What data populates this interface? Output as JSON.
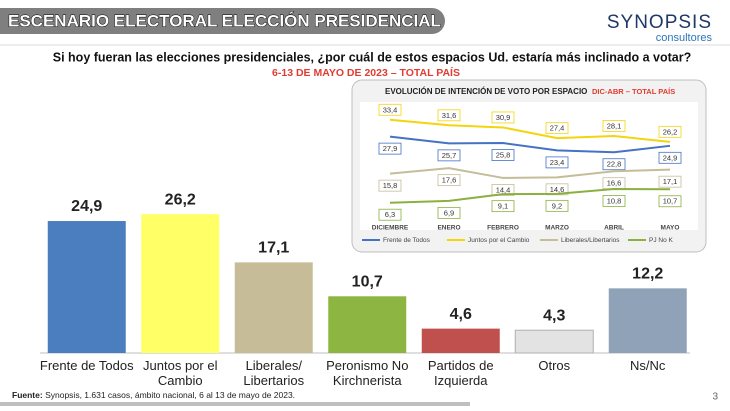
{
  "header": {
    "title": "ESCENARIO ELECTORAL ELECCIÓN PRESIDENCIAL"
  },
  "logo": {
    "name": "SYNOPSIS",
    "tagline": "consultores"
  },
  "question": "Si hoy fueran las elecciones presidenciales, ¿por cuál de estos espacios Ud. estaría más inclinado a votar?",
  "subtitle": "6-13 DE MAYO DE 2023 – TOTAL PAÍS",
  "footer": {
    "label": "Fuente:",
    "text": "Synopsis, 1.631 casos, ámbito nacional, 6 al 13 de mayo de 2023."
  },
  "page_number": "3",
  "chart_data": [
    {
      "type": "bar",
      "categories": [
        "Frente de Todos",
        "Juntos por el Cambio",
        "Liberales/ Libertarios",
        "Peronismo No Kirchnerista",
        "Partidos de Izquierda",
        "Otros",
        "Ns/Nc"
      ],
      "values": [
        24.9,
        26.2,
        17.1,
        10.7,
        4.6,
        4.3,
        12.2
      ],
      "value_labels": [
        "24,9",
        "26,2",
        "17,1",
        "10,7",
        "4,6",
        "4,3",
        "12,2"
      ],
      "colors": [
        "#4a7ebf",
        "#ffff66",
        "#c6bd98",
        "#8db542",
        "#c0504d",
        "#e3e3e3",
        "#8fa2b8"
      ]
    },
    {
      "type": "line",
      "title": "EVOLUCIÓN DE INTENCIÓN DE VOTO POR ESPACIO",
      "subtitle": "DIC-ABR – TOTAL PAÍS",
      "categories": [
        "DICIEMBRE",
        "ENERO",
        "FEBRERO",
        "MARZO",
        "ABRIL",
        "MAYO"
      ],
      "series": [
        {
          "name": "Frente de Todos",
          "color": "#4472c4",
          "values": [
            27.9,
            25.7,
            25.8,
            23.4,
            22.8,
            24.9
          ],
          "value_labels": [
            "27,9",
            "25,7",
            "25,8",
            "23,4",
            "22,8",
            "24,9"
          ]
        },
        {
          "name": "Juntos por el Cambio",
          "color": "#f2d50f",
          "values": [
            33.4,
            31.6,
            30.9,
            27.4,
            28.1,
            26.2
          ],
          "value_labels": [
            "33,4",
            "31,6",
            "30,9",
            "27,4",
            "28,1",
            "26,2"
          ]
        },
        {
          "name": "Liberales/Libertarios",
          "color": "#c4bd97",
          "values": [
            15.8,
            17.6,
            14.4,
            14.6,
            16.6,
            17.1
          ],
          "value_labels": [
            "15,8",
            "17,6",
            "14,4",
            "14,6",
            "16,6",
            "17,1"
          ]
        },
        {
          "name": "PJ No K",
          "color": "#8bb040",
          "values": [
            6.3,
            6.9,
            9.1,
            9.2,
            10.8,
            10.7
          ],
          "value_labels": [
            "6,3",
            "6,9",
            "9,1",
            "9,2",
            "10,8",
            "10,7"
          ]
        }
      ]
    }
  ]
}
